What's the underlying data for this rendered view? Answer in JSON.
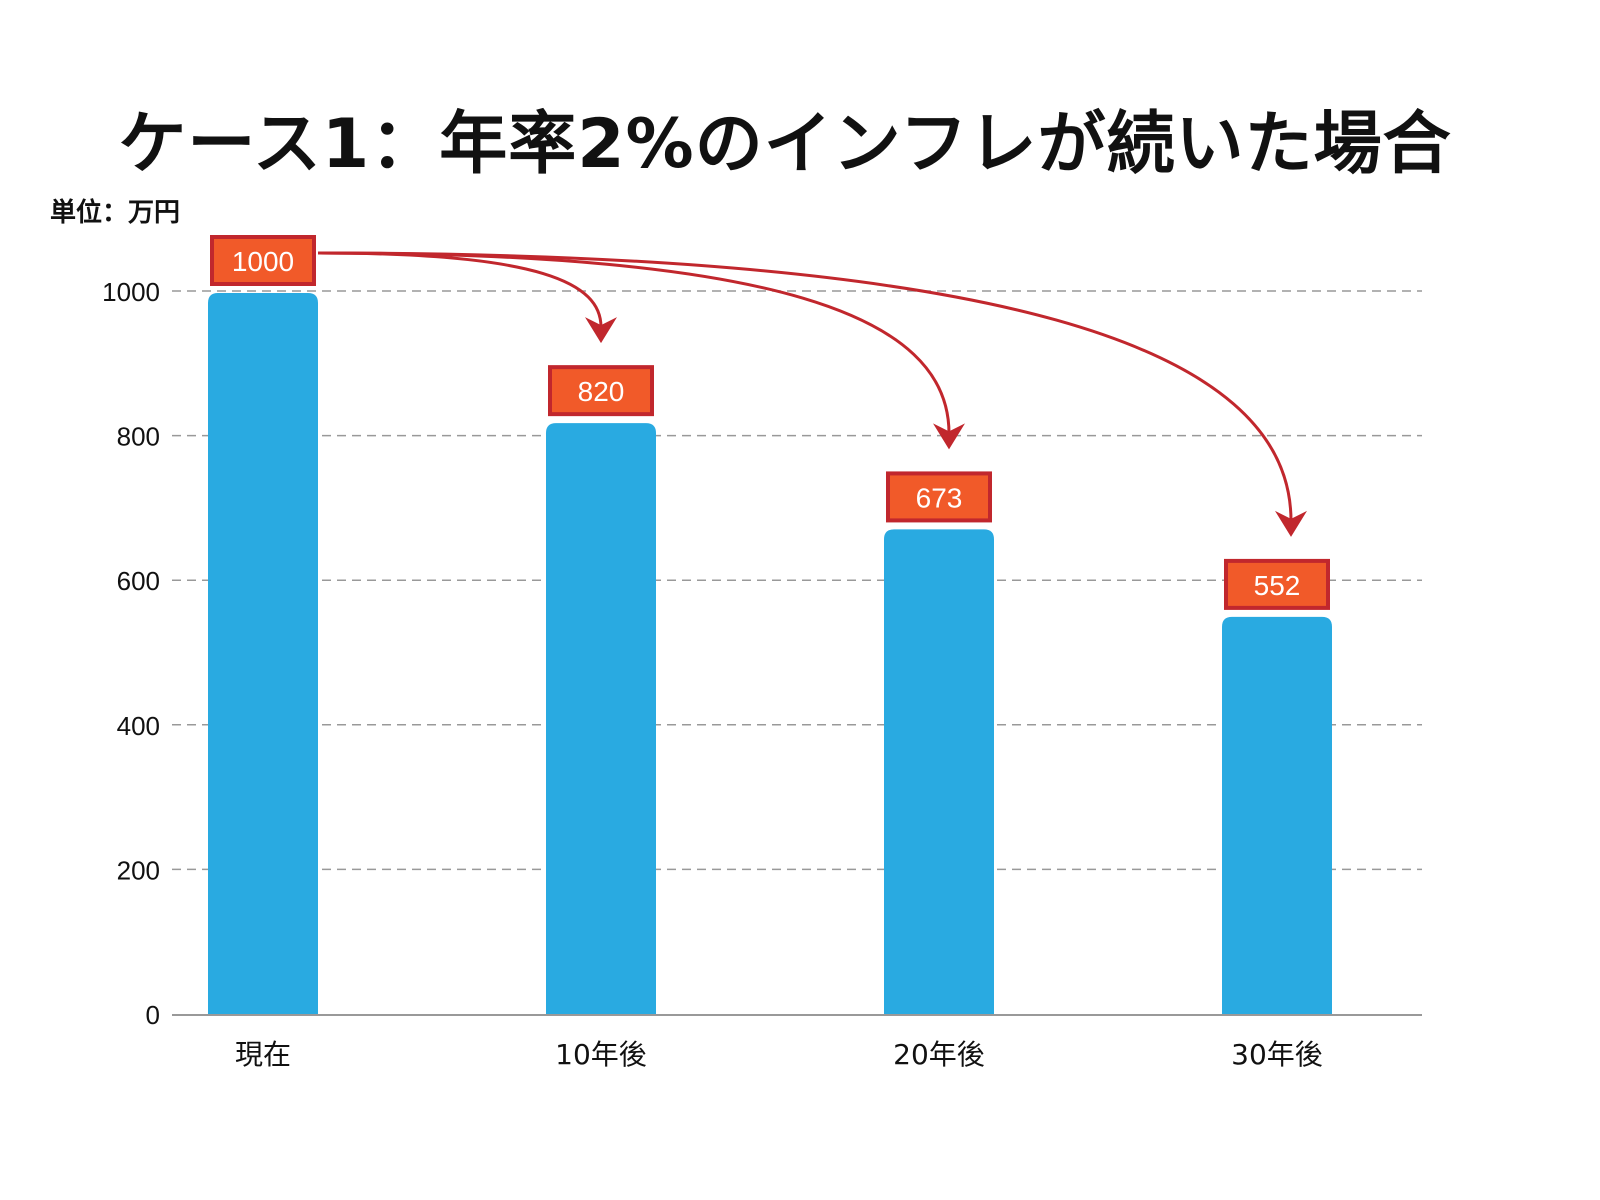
{
  "chart_data": {
    "type": "bar",
    "title": "ケース1：年率2%のインフレが続いた場合",
    "ylabel": "単位：万円",
    "xlabel": "",
    "categories": [
      "現在",
      "10年後",
      "20年後",
      "30年後"
    ],
    "values": [
      1000,
      820,
      673,
      552
    ],
    "data_labels": [
      "1000",
      "820",
      "673",
      "552"
    ],
    "ylim": [
      0,
      1000
    ],
    "yticks": [
      "0",
      "200",
      "400",
      "600",
      "800",
      "1000"
    ],
    "grid": true,
    "annotations": "arrows from 現在 label to each later label",
    "colors": {
      "bar": "#29aae1",
      "label_fill": "#f15a29",
      "label_border": "#c1272d",
      "arrow": "#c1272d",
      "grid": "#999999"
    }
  }
}
